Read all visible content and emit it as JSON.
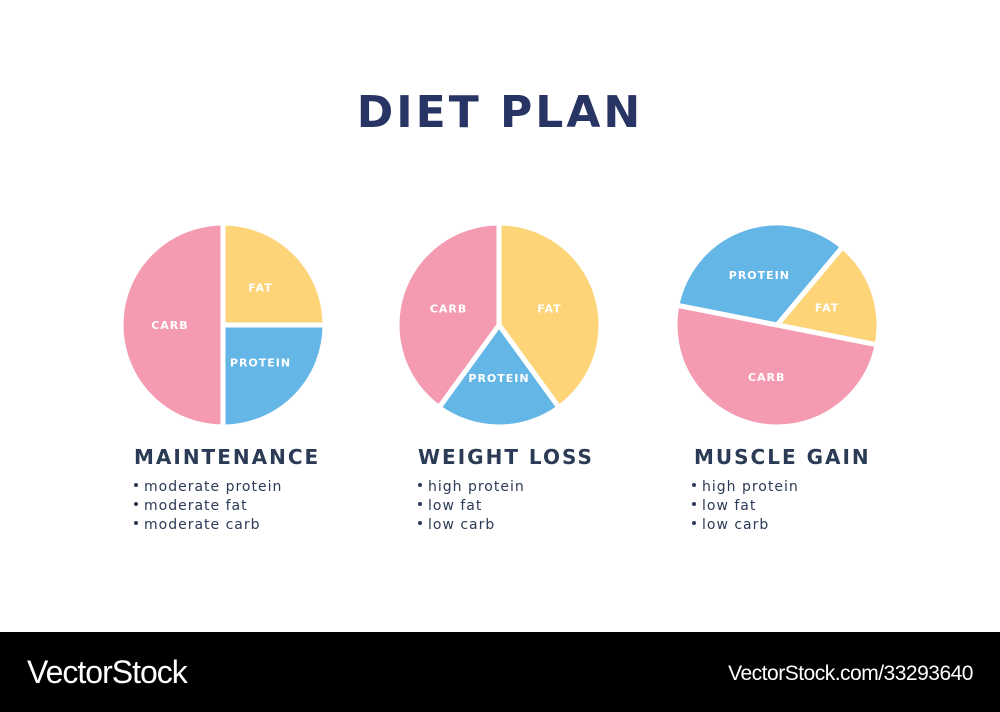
{
  "title": "DIET PLAN",
  "colors": {
    "carb": "#f49bb1",
    "fat": "#fdd477",
    "protein": "#64b6e6",
    "title": "#283463",
    "text": "#2b3a55",
    "footer": "#000000"
  },
  "chart_data": [
    {
      "type": "pie",
      "title": "MAINTENANCE",
      "notes": [
        "moderate protein",
        "moderate fat",
        "moderate carb"
      ],
      "slices": [
        {
          "label": "FAT",
          "value": 25,
          "color": "#fdd477"
        },
        {
          "label": "PROTEIN",
          "value": 25,
          "color": "#64b6e6"
        },
        {
          "label": "CARB",
          "value": 50,
          "color": "#f49bb1"
        }
      ]
    },
    {
      "type": "pie",
      "title": "WEIGHT LOSS",
      "notes": [
        "high protein",
        "low fat",
        "low carb"
      ],
      "slices": [
        {
          "label": "FAT",
          "value": 40,
          "color": "#fdd477"
        },
        {
          "label": "PROTEIN",
          "value": 20,
          "color": "#64b6e6"
        },
        {
          "label": "CARB",
          "value": 40,
          "color": "#f49bb1"
        }
      ]
    },
    {
      "type": "pie",
      "title": "MUSCLE GAIN",
      "notes": [
        "high protein",
        "low fat",
        "low carb"
      ],
      "slices": [
        {
          "label": "FAT",
          "value": 17,
          "color": "#fdd477"
        },
        {
          "label": "CARB",
          "value": 50,
          "color": "#f49bb1"
        },
        {
          "label": "PROTEIN",
          "value": 33,
          "color": "#64b6e6"
        }
      ]
    }
  ],
  "footer": {
    "brand": "VectorStock",
    "image_id": "VectorStock.com/33293640"
  }
}
